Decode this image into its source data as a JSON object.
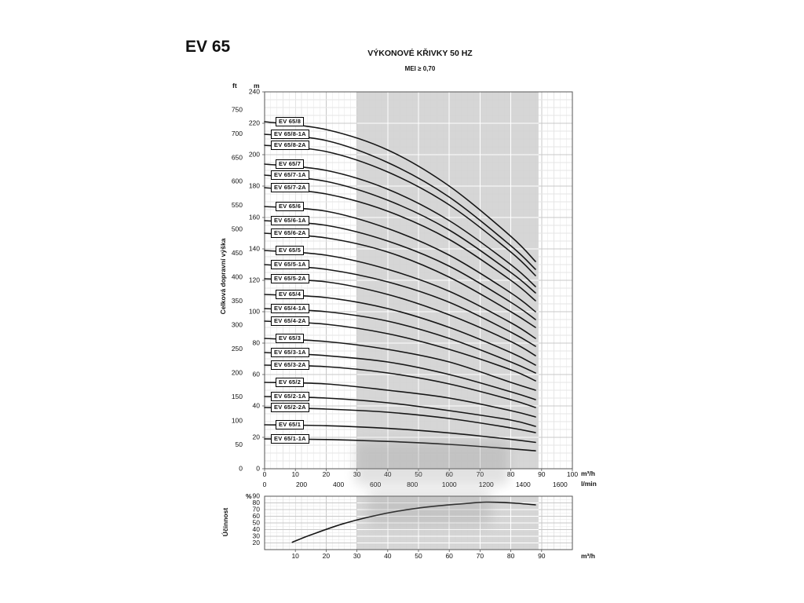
{
  "page": {
    "model": "EV 65",
    "title": "VÝKONOVÉ KŘIVKY 50 HZ",
    "subtitle": "MEI ≥ 0,70"
  },
  "chart_data": [
    {
      "id": "head",
      "type": "line",
      "title": "EV 65 výkonové křivky 50 Hz",
      "ylabel": "Celková dopravní výška",
      "y_units": [
        "ft",
        "m"
      ],
      "x_units": [
        "m³/h",
        "l/min"
      ],
      "xlim_m3h": [
        0,
        100
      ],
      "ylim_m": [
        0,
        240
      ],
      "ylim_ft": [
        0,
        750
      ],
      "x_ticks_m3h": [
        0,
        10,
        20,
        30,
        40,
        50,
        60,
        70,
        80,
        90,
        100
      ],
      "x_ticks_lmin": [
        0,
        200,
        400,
        600,
        800,
        1000,
        1200,
        1400,
        1600
      ],
      "y_ticks_m": [
        0,
        20,
        40,
        60,
        80,
        100,
        120,
        140,
        160,
        180,
        200,
        220,
        240
      ],
      "y_ticks_ft": [
        0,
        50,
        100,
        150,
        200,
        250,
        300,
        350,
        400,
        450,
        500,
        550,
        600,
        650,
        700,
        750
      ],
      "band_m3h": [
        30,
        89
      ],
      "grid": true,
      "legend_position": "on-curve-left",
      "series": [
        {
          "name": "EV 65/8",
          "points": [
            [
              0,
              221
            ],
            [
              20,
              216
            ],
            [
              40,
              203
            ],
            [
              60,
              180
            ],
            [
              80,
              148
            ],
            [
              88,
              132
            ]
          ]
        },
        {
          "name": "EV 65/8-1A",
          "points": [
            [
              0,
              213
            ],
            [
              20,
              209
            ],
            [
              40,
              195
            ],
            [
              60,
              173
            ],
            [
              80,
              142
            ],
            [
              88,
              127
            ]
          ]
        },
        {
          "name": "EV 65/8-2A",
          "points": [
            [
              0,
              206
            ],
            [
              20,
              202
            ],
            [
              40,
              189
            ],
            [
              60,
              168
            ],
            [
              80,
              138
            ],
            [
              88,
              123
            ]
          ]
        },
        {
          "name": "EV 65/7",
          "points": [
            [
              0,
              194
            ],
            [
              20,
              190
            ],
            [
              40,
              178
            ],
            [
              60,
              158
            ],
            [
              80,
              130
            ],
            [
              88,
              116
            ]
          ]
        },
        {
          "name": "EV 65/7-1A",
          "points": [
            [
              0,
              187
            ],
            [
              20,
              183
            ],
            [
              40,
              171
            ],
            [
              60,
              152
            ],
            [
              80,
              125
            ],
            [
              88,
              112
            ]
          ]
        },
        {
          "name": "EV 65/7-2A",
          "points": [
            [
              0,
              179
            ],
            [
              20,
              175
            ],
            [
              40,
              164
            ],
            [
              60,
              146
            ],
            [
              80,
              120
            ],
            [
              88,
              107
            ]
          ]
        },
        {
          "name": "EV 65/6",
          "points": [
            [
              0,
              167
            ],
            [
              20,
              164
            ],
            [
              40,
              153
            ],
            [
              60,
              136
            ],
            [
              80,
              112
            ],
            [
              88,
              100
            ]
          ]
        },
        {
          "name": "EV 65/6-1A",
          "points": [
            [
              0,
              158
            ],
            [
              20,
              155
            ],
            [
              40,
              145
            ],
            [
              60,
              129
            ],
            [
              80,
              106
            ],
            [
              88,
              95
            ]
          ]
        },
        {
          "name": "EV 65/6-2A",
          "points": [
            [
              0,
              150
            ],
            [
              20,
              147
            ],
            [
              40,
              138
            ],
            [
              60,
              122
            ],
            [
              80,
              100
            ],
            [
              88,
              90
            ]
          ]
        },
        {
          "name": "EV 65/5",
          "points": [
            [
              0,
              139
            ],
            [
              20,
              136
            ],
            [
              40,
              127
            ],
            [
              60,
              113
            ],
            [
              80,
              93
            ],
            [
              88,
              83
            ]
          ]
        },
        {
          "name": "EV 65/5-1A",
          "points": [
            [
              0,
              130
            ],
            [
              20,
              127
            ],
            [
              40,
              119
            ],
            [
              60,
              106
            ],
            [
              80,
              87
            ],
            [
              88,
              78
            ]
          ]
        },
        {
          "name": "EV 65/5-2A",
          "points": [
            [
              0,
              121
            ],
            [
              20,
              119
            ],
            [
              40,
              111
            ],
            [
              60,
              98
            ],
            [
              80,
              81
            ],
            [
              88,
              72
            ]
          ]
        },
        {
          "name": "EV 65/4",
          "points": [
            [
              0,
              111
            ],
            [
              20,
              109
            ],
            [
              40,
              102
            ],
            [
              60,
              90
            ],
            [
              80,
              74
            ],
            [
              88,
              66
            ]
          ]
        },
        {
          "name": "EV 65/4-1A",
          "points": [
            [
              0,
              102
            ],
            [
              20,
              100
            ],
            [
              40,
              94
            ],
            [
              60,
              83
            ],
            [
              80,
              68
            ],
            [
              88,
              61
            ]
          ]
        },
        {
          "name": "EV 65/4-2A",
          "points": [
            [
              0,
              94
            ],
            [
              20,
              92
            ],
            [
              40,
              86
            ],
            [
              60,
              76
            ],
            [
              80,
              63
            ],
            [
              88,
              56
            ]
          ]
        },
        {
          "name": "EV 65/3",
          "points": [
            [
              0,
              83
            ],
            [
              20,
              81
            ],
            [
              40,
              76
            ],
            [
              60,
              68
            ],
            [
              80,
              55
            ],
            [
              88,
              50
            ]
          ]
        },
        {
          "name": "EV 65/3-1A",
          "points": [
            [
              0,
              74
            ],
            [
              20,
              72
            ],
            [
              40,
              68
            ],
            [
              60,
              60
            ],
            [
              80,
              49
            ],
            [
              88,
              44
            ]
          ]
        },
        {
          "name": "EV 65/3-2A",
          "points": [
            [
              0,
              66
            ],
            [
              20,
              65
            ],
            [
              40,
              61
            ],
            [
              60,
              54
            ],
            [
              80,
              44
            ],
            [
              88,
              39
            ]
          ]
        },
        {
          "name": "EV 65/2",
          "points": [
            [
              0,
              55
            ],
            [
              20,
              54
            ],
            [
              40,
              50
            ],
            [
              60,
              45
            ],
            [
              80,
              37
            ],
            [
              88,
              33
            ]
          ]
        },
        {
          "name": "EV 65/2-1A",
          "points": [
            [
              0,
              46
            ],
            [
              20,
              45
            ],
            [
              40,
              42
            ],
            [
              60,
              37
            ],
            [
              80,
              31
            ],
            [
              88,
              27
            ]
          ]
        },
        {
          "name": "EV 65/2-2A",
          "points": [
            [
              0,
              39
            ],
            [
              20,
              38
            ],
            [
              40,
              36
            ],
            [
              60,
              32
            ],
            [
              80,
              26
            ],
            [
              88,
              23
            ]
          ]
        },
        {
          "name": "EV 65/1",
          "points": [
            [
              0,
              28
            ],
            [
              20,
              27.4
            ],
            [
              40,
              25.7
            ],
            [
              60,
              22.8
            ],
            [
              80,
              18.7
            ],
            [
              88,
              16.8
            ]
          ]
        },
        {
          "name": "EV 65/1-1A",
          "points": [
            [
              0,
              19
            ],
            [
              20,
              18.6
            ],
            [
              40,
              17.4
            ],
            [
              60,
              15.5
            ],
            [
              80,
              12.7
            ],
            [
              88,
              11.4
            ]
          ]
        }
      ]
    },
    {
      "id": "efficiency",
      "type": "line",
      "title": "Účinnost",
      "ylabel": "Účinnost",
      "y_unit": "%",
      "x_unit": "m³/h",
      "xlim_m3h": [
        0,
        100
      ],
      "ylim_pct": [
        20,
        90
      ],
      "x_ticks_m3h": [
        10,
        20,
        30,
        40,
        50,
        60,
        70,
        80,
        90
      ],
      "y_ticks_pct": [
        20,
        30,
        40,
        50,
        60,
        70,
        80,
        90
      ],
      "band_m3h": [
        30,
        89
      ],
      "grid": true,
      "series": [
        {
          "name": "Účinnost",
          "points": [
            [
              9,
              21
            ],
            [
              15,
              32
            ],
            [
              25,
              48
            ],
            [
              35,
              60
            ],
            [
              45,
              69
            ],
            [
              55,
              75
            ],
            [
              65,
              79
            ],
            [
              72,
              81
            ],
            [
              80,
              80
            ],
            [
              88,
              77
            ]
          ]
        }
      ]
    }
  ]
}
